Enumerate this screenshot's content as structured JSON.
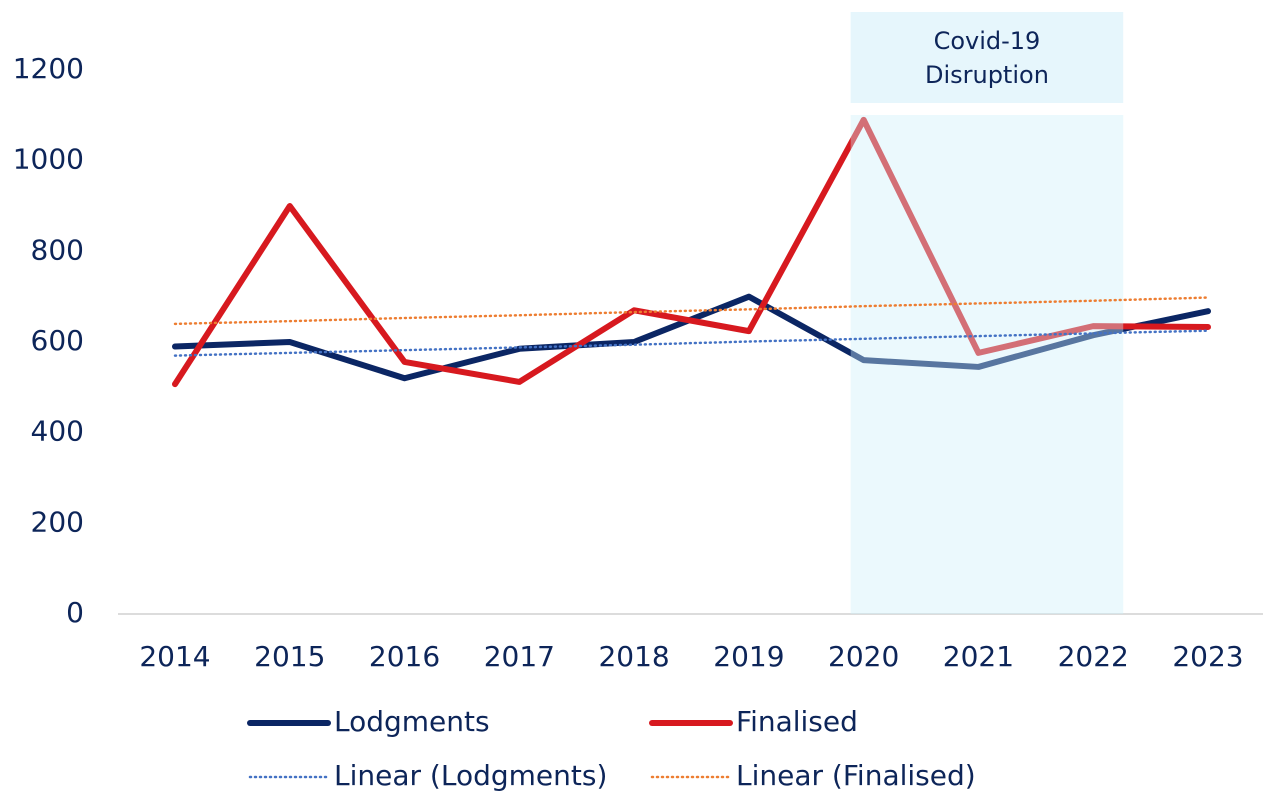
{
  "chart_data": {
    "type": "line",
    "categories": [
      "2014",
      "2015",
      "2016",
      "2017",
      "2018",
      "2019",
      "2020",
      "2021",
      "2022",
      "2023"
    ],
    "series": [
      {
        "name": "Lodgments",
        "color": "#0b2664",
        "values": [
          590,
          600,
          520,
          585,
          600,
          700,
          560,
          545,
          615,
          668
        ]
      },
      {
        "name": "Finalised",
        "color": "#d7191f",
        "values": [
          507,
          900,
          556,
          512,
          670,
          624,
          1090,
          576,
          635,
          633
        ]
      },
      {
        "name": "Linear (Lodgments)",
        "color": "#4472c4",
        "dotted": true,
        "values": [
          570,
          576,
          582,
          588,
          594,
          601,
          607,
          613,
          619,
          625
        ]
      },
      {
        "name": "Linear (Finalised)",
        "color": "#ed7d31",
        "dotted": true,
        "values": [
          640,
          646,
          653,
          659,
          666,
          672,
          679,
          685,
          691,
          698
        ]
      }
    ],
    "annotation": {
      "text": [
        "Covid-19",
        "Disruption"
      ],
      "from": "2020",
      "to": "2022",
      "color": "#e6f6fc"
    },
    "ylim": [
      0,
      1200
    ],
    "yticks": [
      0,
      200,
      400,
      600,
      800,
      1000,
      1200
    ],
    "grid": false
  }
}
